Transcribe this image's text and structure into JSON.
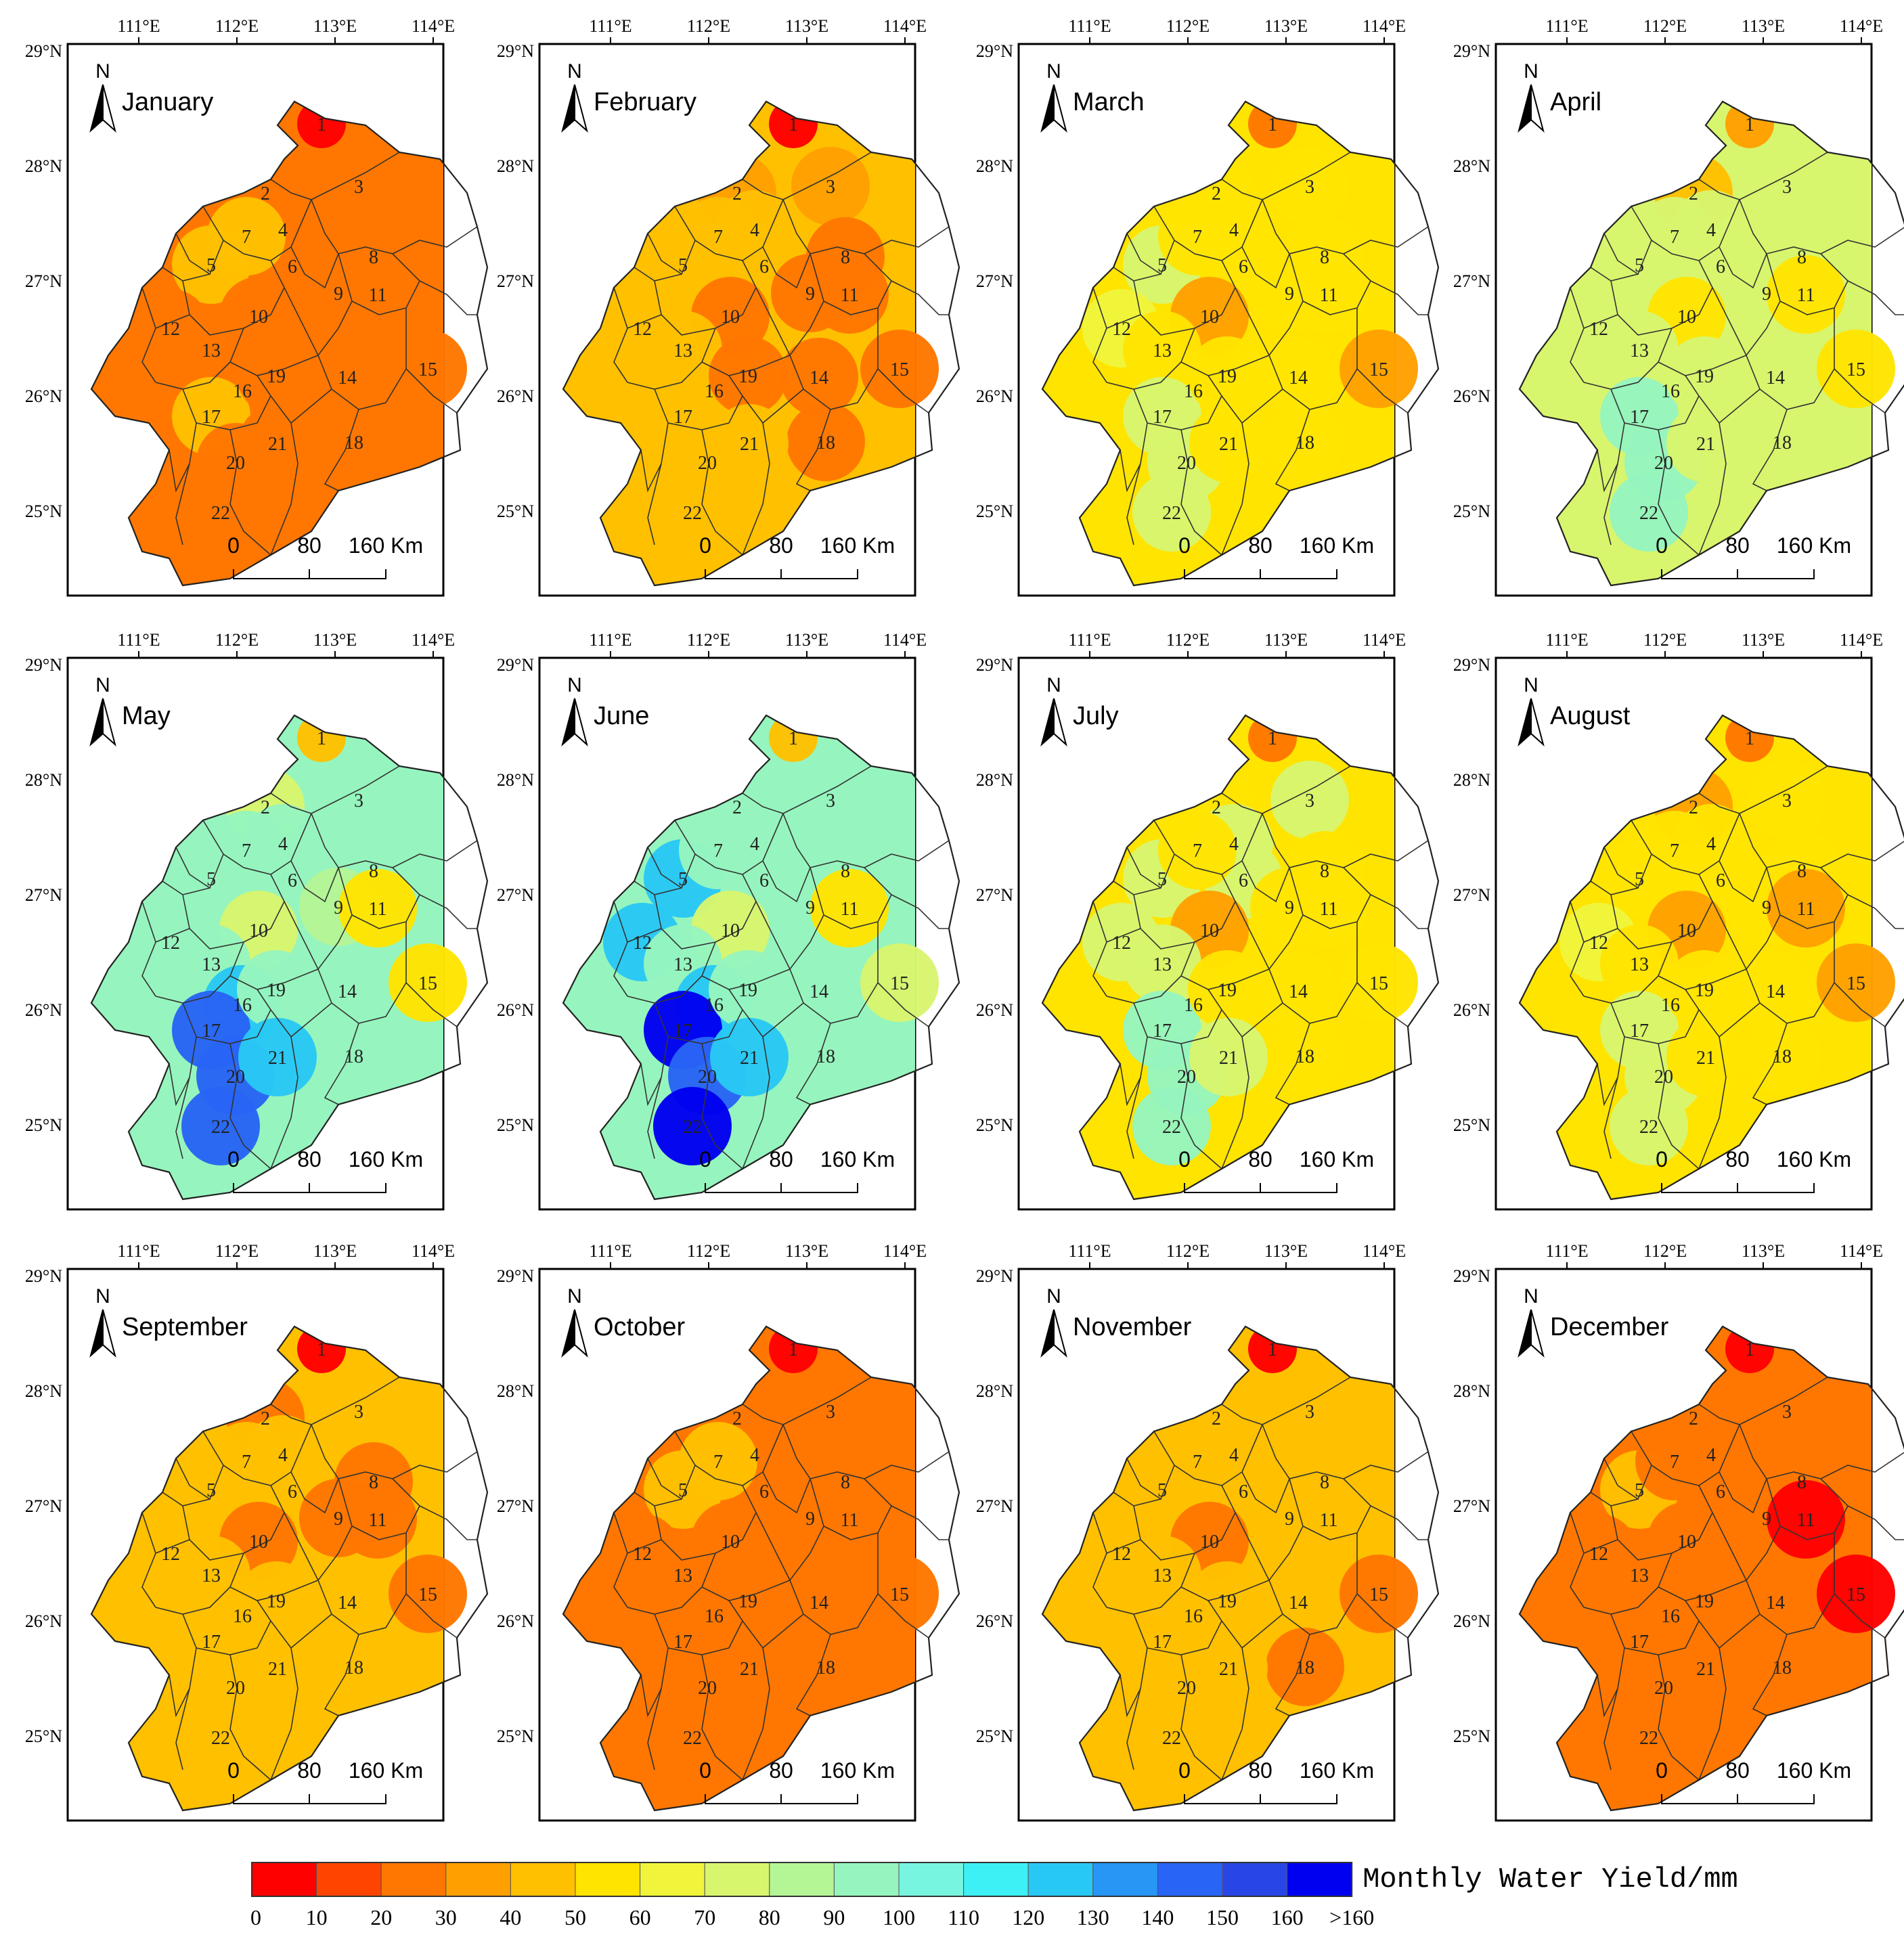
{
  "figure": {
    "lon_labels": [
      "111°E",
      "112°E",
      "113°E",
      "114°E"
    ],
    "lat_labels": [
      "29°N",
      "28°N",
      "27°N",
      "26°N",
      "25°N"
    ],
    "north_label": "N",
    "scale_labels": [
      "0",
      "80",
      "160 Km"
    ]
  },
  "legend": {
    "title": "Monthly Water Yield/mm",
    "ticks": [
      "0",
      "10",
      "20",
      "30",
      "40",
      "50",
      "60",
      "70",
      "80",
      "90",
      "100",
      "110",
      "120",
      "130",
      "140",
      "150",
      "160",
      ">160"
    ],
    "colors": [
      "#ff0000",
      "#ff4400",
      "#ff7700",
      "#ffa000",
      "#ffc000",
      "#ffe400",
      "#f0f53c",
      "#d8f56e",
      "#b4f596",
      "#96f5be",
      "#78f5e0",
      "#3cf0f5",
      "#28c8f5",
      "#2896f5",
      "#2864f5",
      "#2846e6",
      "#0000f0"
    ]
  },
  "maps": [
    {
      "month": "January",
      "codes": [
        0,
        2,
        2,
        2,
        4,
        2,
        4,
        2,
        2,
        2,
        2,
        2,
        2,
        2,
        2,
        2,
        4,
        2,
        2,
        2,
        2,
        2
      ]
    },
    {
      "month": "February",
      "codes": [
        0,
        3,
        3,
        4,
        4,
        4,
        4,
        2,
        2,
        2,
        2,
        4,
        4,
        2,
        2,
        4,
        4,
        2,
        2,
        4,
        4,
        4
      ]
    },
    {
      "month": "March",
      "codes": [
        2,
        5,
        5,
        5,
        7,
        5,
        5,
        5,
        5,
        3,
        5,
        6,
        5,
        5,
        3,
        5,
        7,
        5,
        5,
        7,
        5,
        7
      ]
    },
    {
      "month": "April",
      "codes": [
        3,
        4,
        7,
        7,
        7,
        7,
        7,
        7,
        7,
        5,
        5,
        7,
        7,
        7,
        5,
        7,
        9,
        7,
        7,
        9,
        7,
        9
      ]
    },
    {
      "month": "May",
      "codes": [
        4,
        7,
        9,
        9,
        9,
        9,
        9,
        9,
        8,
        7,
        5,
        9,
        9,
        9,
        5,
        12,
        14,
        9,
        9,
        14,
        12,
        14
      ]
    },
    {
      "month": "June",
      "codes": [
        4,
        9,
        9,
        9,
        12,
        9,
        9,
        9,
        9,
        7,
        5,
        12,
        9,
        9,
        7,
        12,
        16,
        9,
        9,
        14,
        12,
        16
      ]
    },
    {
      "month": "July",
      "codes": [
        2,
        5,
        7,
        7,
        7,
        7,
        5,
        5,
        5,
        3,
        5,
        7,
        7,
        5,
        5,
        7,
        9,
        5,
        5,
        9,
        7,
        9
      ]
    },
    {
      "month": "August",
      "codes": [
        2,
        3,
        5,
        5,
        5,
        5,
        5,
        5,
        5,
        3,
        3,
        6,
        5,
        5,
        3,
        5,
        7,
        5,
        5,
        7,
        5,
        7
      ]
    },
    {
      "month": "September",
      "codes": [
        0,
        2,
        4,
        4,
        4,
        4,
        4,
        2,
        2,
        2,
        2,
        4,
        4,
        4,
        2,
        4,
        4,
        4,
        4,
        4,
        4,
        4
      ]
    },
    {
      "month": "October",
      "codes": [
        0,
        2,
        2,
        2,
        4,
        2,
        4,
        2,
        2,
        2,
        2,
        2,
        2,
        2,
        2,
        2,
        2,
        2,
        2,
        2,
        2,
        2
      ]
    },
    {
      "month": "November",
      "codes": [
        0,
        4,
        4,
        4,
        4,
        4,
        4,
        4,
        4,
        2,
        4,
        4,
        4,
        4,
        2,
        4,
        4,
        2,
        4,
        4,
        4,
        4
      ]
    },
    {
      "month": "December",
      "codes": [
        0,
        2,
        2,
        2,
        4,
        2,
        2,
        2,
        2,
        2,
        0,
        2,
        2,
        2,
        0,
        2,
        2,
        2,
        2,
        2,
        2,
        2
      ]
    }
  ],
  "region_labels": [
    "1",
    "2",
    "3",
    "4",
    "5",
    "6",
    "7",
    "8",
    "9",
    "10",
    "11",
    "12",
    "13",
    "14",
    "15",
    "16",
    "17",
    "18",
    "19",
    "20",
    "21",
    "22"
  ]
}
